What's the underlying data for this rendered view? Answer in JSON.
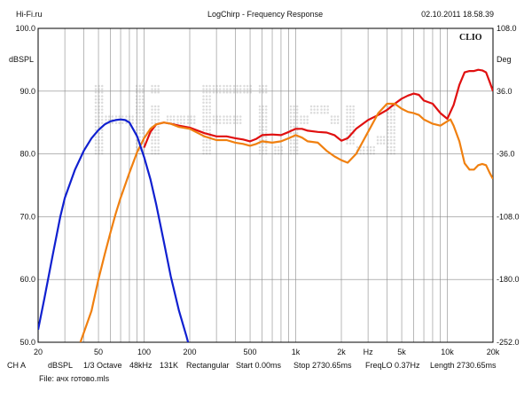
{
  "header": {
    "site": "Hi-Fi.ru",
    "title": "LogChirp - Frequency Response",
    "datetime": "02.10.2011 18.58.39"
  },
  "brand": "CLIO",
  "watermark": "Hi-Fi.ru",
  "footer": {
    "items": [
      "CH A",
      "dBSPL",
      "1/3 Octave",
      "48kHz",
      "131K",
      "Rectangular",
      "Start 0.00ms",
      "Stop 2730.65ms",
      "FreqLO 0.37Hz",
      "Length 2730.65ms"
    ],
    "file": "File: ачх готово.mls"
  },
  "chart_data": {
    "type": "line",
    "title": "LogChirp - Frequency Response",
    "xlabel": "Hz",
    "ylabel": "dBSPL",
    "y2label": "Deg",
    "xscale": "log",
    "xlim": [
      20,
      20000
    ],
    "ylim": [
      50,
      100
    ],
    "y2lim": [
      -252,
      108
    ],
    "grid": true,
    "x_tick_labels": [
      "20",
      "50",
      "100",
      "200",
      "500",
      "1k",
      "2k",
      "Hz",
      "5k",
      "10k",
      "20k"
    ],
    "x_tick_values": [
      20,
      50,
      100,
      200,
      500,
      1000,
      2000,
      3000,
      5000,
      10000,
      20000
    ],
    "y_tick_labels": [
      "50.0",
      "60.0",
      "70.0",
      "80.0",
      "90.0",
      "100.0"
    ],
    "y_tick_values": [
      50,
      60,
      70,
      80,
      90,
      100
    ],
    "y2_tick_labels": [
      "-252.0",
      "-180.0",
      "-108.0",
      "-36.0",
      "36.0",
      "108.0"
    ],
    "colors": {
      "red": "#e01010",
      "orange": "#f08010",
      "blue": "#1020d0"
    },
    "series": [
      {
        "color": "#e01010",
        "points": [
          [
            100,
            81.0
          ],
          [
            110,
            83.5
          ],
          [
            120,
            84.7
          ],
          [
            135,
            85.0
          ],
          [
            150,
            84.8
          ],
          [
            170,
            84.5
          ],
          [
            200,
            84.2
          ],
          [
            250,
            83.3
          ],
          [
            300,
            82.8
          ],
          [
            350,
            82.8
          ],
          [
            400,
            82.5
          ],
          [
            450,
            82.3
          ],
          [
            500,
            82.0
          ],
          [
            550,
            82.4
          ],
          [
            600,
            83.0
          ],
          [
            700,
            83.1
          ],
          [
            800,
            83.0
          ],
          [
            900,
            83.5
          ],
          [
            1000,
            84.0
          ],
          [
            1100,
            84.0
          ],
          [
            1200,
            83.7
          ],
          [
            1400,
            83.5
          ],
          [
            1600,
            83.4
          ],
          [
            1800,
            83.0
          ],
          [
            2000,
            82.1
          ],
          [
            2200,
            82.5
          ],
          [
            2500,
            84.0
          ],
          [
            3000,
            85.4
          ],
          [
            3500,
            86.2
          ],
          [
            4000,
            87.0
          ],
          [
            4500,
            88.0
          ],
          [
            5000,
            88.8
          ],
          [
            5500,
            89.3
          ],
          [
            6000,
            89.6
          ],
          [
            6500,
            89.4
          ],
          [
            7000,
            88.5
          ],
          [
            8000,
            88.0
          ],
          [
            9000,
            86.5
          ],
          [
            10000,
            85.6
          ],
          [
            11000,
            87.8
          ],
          [
            12000,
            91.0
          ],
          [
            13000,
            93.0
          ],
          [
            14000,
            93.2
          ],
          [
            15000,
            93.2
          ],
          [
            16000,
            93.4
          ],
          [
            17000,
            93.3
          ],
          [
            18000,
            93.0
          ],
          [
            19000,
            91.5
          ],
          [
            20000,
            90.0
          ]
        ]
      },
      {
        "color": "#f08010",
        "points": [
          [
            38,
            50.0
          ],
          [
            45,
            55.0
          ],
          [
            50,
            60.0
          ],
          [
            55,
            64.0
          ],
          [
            60,
            67.5
          ],
          [
            65,
            70.5
          ],
          [
            70,
            73.0
          ],
          [
            80,
            77.0
          ],
          [
            90,
            80.3
          ],
          [
            100,
            82.5
          ],
          [
            110,
            84.0
          ],
          [
            120,
            84.7
          ],
          [
            135,
            85.0
          ],
          [
            150,
            84.8
          ],
          [
            170,
            84.3
          ],
          [
            200,
            84.0
          ],
          [
            250,
            82.8
          ],
          [
            300,
            82.2
          ],
          [
            350,
            82.2
          ],
          [
            400,
            81.8
          ],
          [
            450,
            81.6
          ],
          [
            500,
            81.3
          ],
          [
            550,
            81.6
          ],
          [
            600,
            82.0
          ],
          [
            700,
            81.8
          ],
          [
            800,
            82.0
          ],
          [
            900,
            82.5
          ],
          [
            1000,
            83.0
          ],
          [
            1100,
            82.6
          ],
          [
            1200,
            82.0
          ],
          [
            1400,
            81.8
          ],
          [
            1600,
            80.5
          ],
          [
            1800,
            79.6
          ],
          [
            2000,
            79.0
          ],
          [
            2200,
            78.6
          ],
          [
            2500,
            80.0
          ],
          [
            3000,
            83.5
          ],
          [
            3500,
            86.5
          ],
          [
            4000,
            88.0
          ],
          [
            4500,
            88.0
          ],
          [
            5000,
            87.2
          ],
          [
            5500,
            86.7
          ],
          [
            6000,
            86.5
          ],
          [
            6500,
            86.2
          ],
          [
            7000,
            85.5
          ],
          [
            8000,
            84.8
          ],
          [
            9000,
            84.5
          ],
          [
            10000,
            85.2
          ],
          [
            10500,
            85.5
          ],
          [
            11000,
            84.5
          ],
          [
            12000,
            82.0
          ],
          [
            13000,
            78.5
          ],
          [
            14000,
            77.5
          ],
          [
            15000,
            77.5
          ],
          [
            16000,
            78.2
          ],
          [
            17000,
            78.4
          ],
          [
            18000,
            78.2
          ],
          [
            19000,
            77.0
          ],
          [
            20000,
            76.0
          ]
        ]
      },
      {
        "color": "#1020d0",
        "points": [
          [
            20,
            52.0
          ],
          [
            22,
            57.0
          ],
          [
            25,
            64.0
          ],
          [
            28,
            70.0
          ],
          [
            30,
            73.0
          ],
          [
            35,
            77.5
          ],
          [
            40,
            80.5
          ],
          [
            45,
            82.5
          ],
          [
            50,
            83.8
          ],
          [
            55,
            84.7
          ],
          [
            60,
            85.2
          ],
          [
            65,
            85.4
          ],
          [
            70,
            85.5
          ],
          [
            75,
            85.4
          ],
          [
            80,
            85.0
          ],
          [
            90,
            82.8
          ],
          [
            100,
            79.5
          ],
          [
            110,
            76.0
          ],
          [
            120,
            72.0
          ],
          [
            135,
            66.0
          ],
          [
            150,
            60.5
          ],
          [
            170,
            55.0
          ],
          [
            190,
            51.0
          ],
          [
            200,
            49.0
          ]
        ]
      }
    ]
  }
}
